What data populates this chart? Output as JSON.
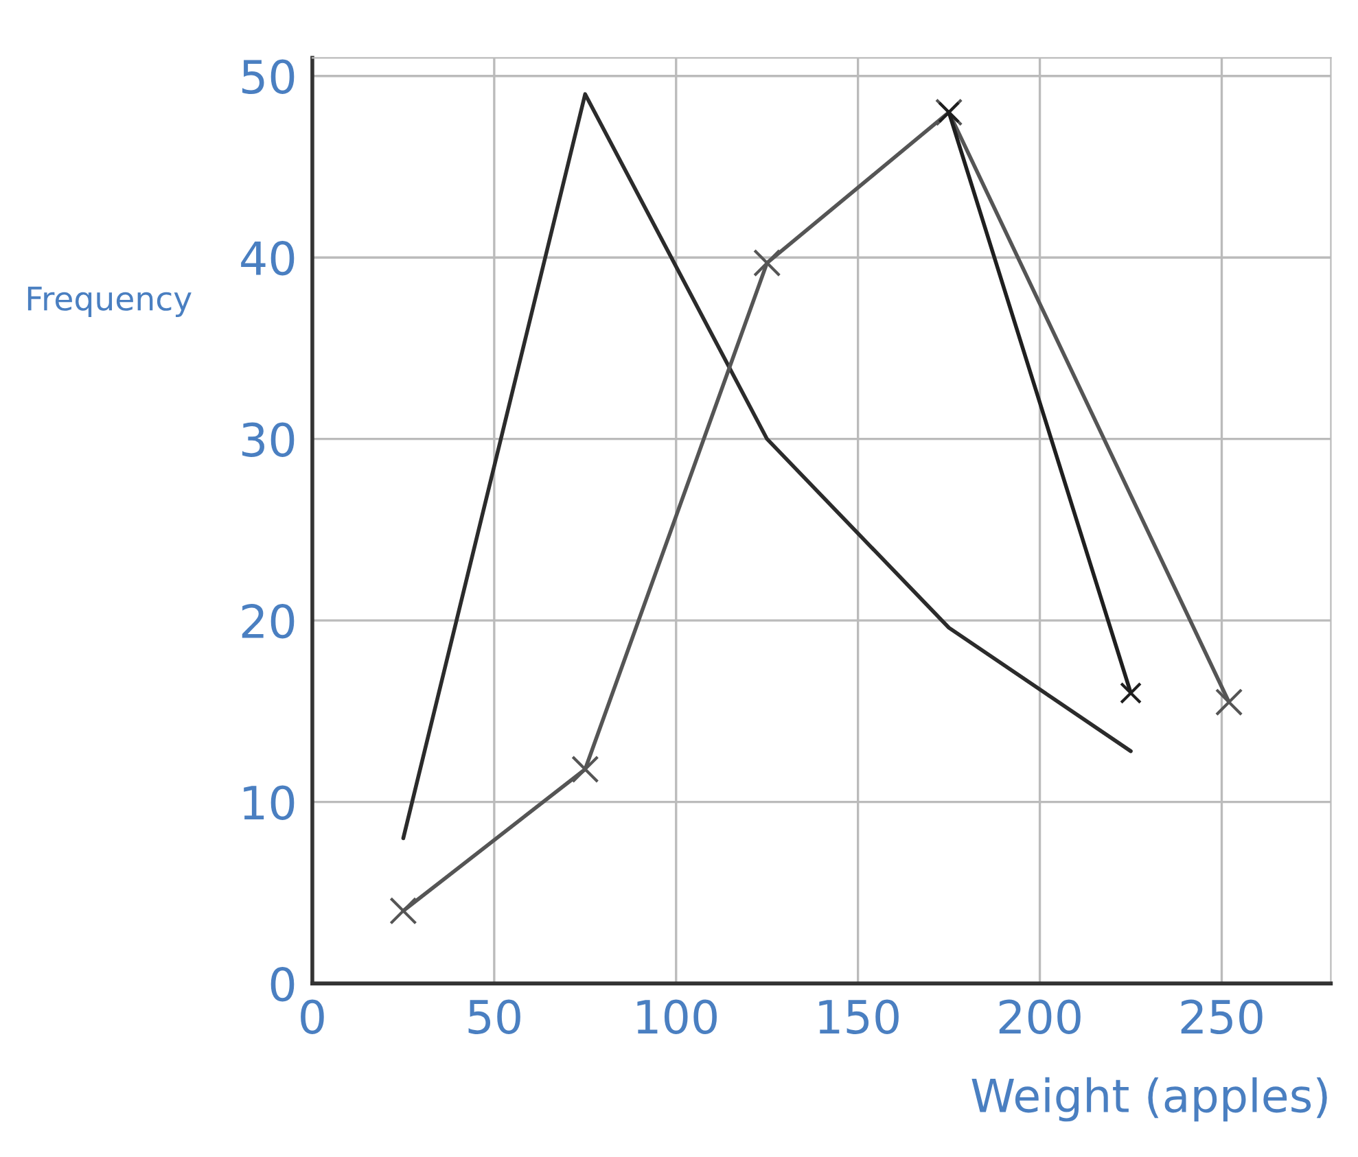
{
  "chart_data": {
    "type": "line",
    "xlabel": "Weight (apples)",
    "ylabel": "Frequency",
    "xlim": [
      0,
      280
    ],
    "ylim": [
      0,
      51
    ],
    "xticks": [
      0,
      50,
      100,
      150,
      200,
      250
    ],
    "yticks": [
      0,
      10,
      20,
      30,
      40,
      50
    ],
    "grid": true,
    "legend": false,
    "series": [
      {
        "color": "#2b2b2b",
        "marker": "none",
        "x": [
          25,
          75,
          125,
          175,
          225
        ],
        "values": [
          8,
          49,
          30,
          19.6,
          12.8
        ]
      },
      {
        "color": "#555555",
        "marker": "cross",
        "x": [
          25,
          75,
          125,
          175,
          252
        ],
        "values": [
          4,
          11.8,
          39.7,
          48,
          15.5
        ]
      },
      {
        "color": "#1f1f1f",
        "marker": "cross",
        "x": [
          175,
          225
        ],
        "values": [
          48,
          16
        ]
      }
    ]
  }
}
